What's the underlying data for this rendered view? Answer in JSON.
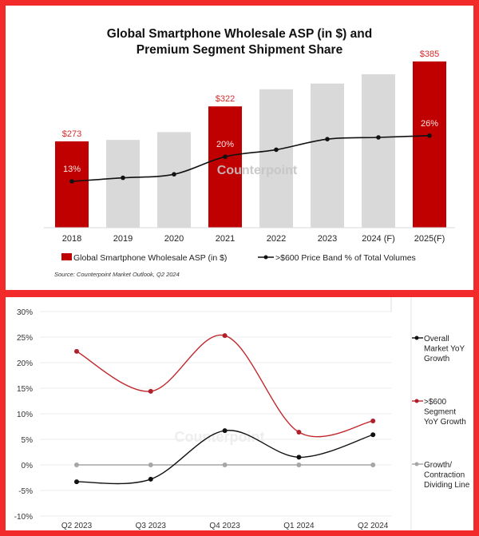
{
  "colors": {
    "frame": "#f22a2a",
    "highlight_bar": "#c00000",
    "bar": "#d9d9d9",
    "line_black": "#111111",
    "line_red": "#c0282d",
    "line_gray": "#a6a6a6"
  },
  "chart_data": [
    {
      "type": "bar+line",
      "title_line1": "Global Smartphone Wholesale ASP (in $) and",
      "title_line2": "Premium Segment Shipment Share",
      "categories": [
        "2018",
        "2019",
        "2020",
        "2021",
        "2022",
        "2023",
        "2024 (F)",
        "2025(F)"
      ],
      "bar_series": {
        "name": "Global Smartphone Wholesale ASP (in $)",
        "values": [
          273,
          275,
          286,
          322,
          346,
          354,
          367,
          385
        ],
        "highlighted": [
          true,
          false,
          false,
          true,
          false,
          false,
          false,
          true
        ],
        "labels": [
          "$273",
          "",
          "",
          "$322",
          "",
          "",
          "",
          "$385"
        ]
      },
      "line_series": {
        "name": ">$600 Price Band % of Total Volumes",
        "values": [
          13,
          14,
          15,
          20,
          22,
          25,
          25.5,
          26
        ],
        "labels": [
          "13%",
          "",
          "",
          "20%",
          "",
          "",
          "",
          "26%"
        ]
      },
      "source": "Source: Counterpoint Market Outlook, Q2 2024",
      "watermark": "Counterpoint"
    },
    {
      "type": "line",
      "categories": [
        "Q2 2023",
        "Q3 2023",
        "Q4 2023",
        "Q1 2024",
        "Q2 2024"
      ],
      "yticks": [
        "30%",
        "25%",
        "20%",
        "15%",
        "10%",
        "5%",
        "0%",
        "-5%",
        "-10%"
      ],
      "ylim": [
        -10,
        30
      ],
      "grid": true,
      "legend_position": "right",
      "series": [
        {
          "name": "Overall Market YoY Growth",
          "legend_lines": [
            "Overall",
            "Market YoY",
            "Growth"
          ],
          "values": [
            -3.3,
            -2.8,
            6.7,
            1.5,
            5.9
          ]
        },
        {
          "name": ">$600 Segment YoY Growth",
          "legend_lines": [
            ">$600",
            "Segment",
            "YoY Growth"
          ],
          "values": [
            22.2,
            14.4,
            25.3,
            6.4,
            8.6
          ]
        },
        {
          "name": "Growth/ Contraction Dividing Line",
          "legend_lines": [
            "Growth/",
            "Contraction",
            "Dividing Line"
          ],
          "values": [
            0,
            0,
            0,
            0,
            0
          ]
        }
      ],
      "watermark": "Counterpoint"
    }
  ]
}
